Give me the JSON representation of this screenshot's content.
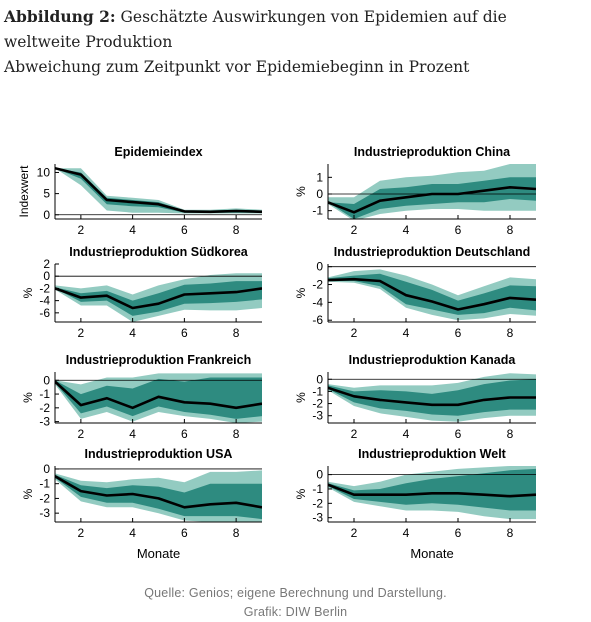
{
  "figure": {
    "label": "Abbildung 2:",
    "title_rest": "Geschätzte Auswirkungen von Epidemien auf die weltweite Produktion",
    "subtitle": "Abweichung zum Zeitpunkt vor Epidemiebeginn in Prozent"
  },
  "colors": {
    "outer_band": "#93cbc1",
    "inner_band": "#2e8b80",
    "line": "#000000",
    "axis": "#000000"
  },
  "chart_data": [
    {
      "type": "area",
      "title": "Epidemieindex",
      "ylabel": "Indexwert",
      "xlabel": "",
      "xlim": [
        1,
        9
      ],
      "ylim": [
        -1,
        12
      ],
      "yticks": [
        0,
        5,
        10
      ],
      "xticks": [
        2,
        4,
        6,
        8
      ],
      "x": [
        1,
        2,
        3,
        4,
        5,
        6,
        7,
        8,
        9
      ],
      "series": [
        {
          "role": "median",
          "values": [
            11,
            9.5,
            3.5,
            3,
            2.5,
            0.8,
            0.7,
            0.9,
            0.7
          ]
        },
        {
          "role": "inner",
          "lower": [
            11,
            8.5,
            2.5,
            2,
            1.8,
            0.5,
            0.5,
            0.5,
            0.5
          ],
          "upper": [
            11,
            10,
            4,
            3.5,
            3,
            1,
            1,
            1.2,
            1
          ]
        },
        {
          "role": "outer",
          "lower": [
            11,
            7,
            1,
            0.5,
            0.5,
            0.3,
            0.3,
            0.3,
            0.3
          ],
          "upper": [
            11,
            11,
            4.5,
            4,
            3.5,
            1.2,
            1.2,
            1.5,
            1.2
          ]
        }
      ]
    },
    {
      "type": "area",
      "title": "Industrieproduktion China",
      "ylabel": "%",
      "xlabel": "",
      "xlim": [
        1,
        9
      ],
      "ylim": [
        -1.5,
        1.8
      ],
      "yticks": [
        -1,
        0,
        1
      ],
      "xticks": [
        2,
        4,
        6,
        8
      ],
      "x": [
        1,
        2,
        3,
        4,
        5,
        6,
        7,
        8,
        9
      ],
      "series": [
        {
          "role": "median",
          "values": [
            -0.5,
            -1.1,
            -0.4,
            -0.2,
            0,
            0,
            0.2,
            0.4,
            0.3
          ]
        },
        {
          "role": "inner",
          "lower": [
            -0.5,
            -1.5,
            -0.9,
            -0.7,
            -0.6,
            -0.5,
            -0.5,
            -0.3,
            -0.4
          ],
          "upper": [
            -0.5,
            -0.6,
            0.3,
            0.4,
            0.6,
            0.6,
            0.8,
            1.0,
            1.0
          ]
        },
        {
          "role": "outer",
          "lower": [
            -0.6,
            -1.6,
            -1.2,
            -1.0,
            -0.9,
            -0.9,
            -1.0,
            -1.0,
            -1.0
          ],
          "upper": [
            -0.2,
            -0.2,
            0.8,
            1.0,
            1.1,
            1.3,
            1.4,
            1.8,
            1.8
          ]
        }
      ]
    },
    {
      "type": "area",
      "title": "Industrieproduktion Südkorea",
      "ylabel": "%",
      "xlabel": "",
      "xlim": [
        1,
        9
      ],
      "ylim": [
        -7.5,
        2
      ],
      "yticks": [
        -6,
        -4,
        -2,
        0,
        2
      ],
      "xticks": [
        2,
        4,
        6,
        8
      ],
      "x": [
        1,
        2,
        3,
        4,
        5,
        6,
        7,
        8,
        9
      ],
      "series": [
        {
          "role": "median",
          "values": [
            -2,
            -3.5,
            -3.2,
            -5.2,
            -4.5,
            -3,
            -2.8,
            -2.6,
            -2
          ]
        },
        {
          "role": "inner",
          "lower": [
            -2,
            -4.2,
            -4,
            -6.5,
            -5.8,
            -4.5,
            -4.4,
            -4.2,
            -3.8
          ],
          "upper": [
            -1.8,
            -2.8,
            -2.4,
            -4,
            -2.8,
            -1.4,
            -1.2,
            -0.8,
            -0.8
          ]
        },
        {
          "role": "outer",
          "lower": [
            -2.2,
            -4.8,
            -4.8,
            -7.5,
            -6.5,
            -5.5,
            -5.6,
            -5.6,
            -5.2
          ],
          "upper": [
            -1.5,
            -2,
            -1.5,
            -3,
            -1.5,
            -0.5,
            0.2,
            0.5,
            0.5
          ]
        }
      ]
    },
    {
      "type": "area",
      "title": "Industrieproduktion Deutschland",
      "ylabel": "%",
      "xlabel": "",
      "xlim": [
        1,
        9
      ],
      "ylim": [
        -6.2,
        0.3
      ],
      "yticks": [
        -6,
        -4,
        -2,
        0
      ],
      "xticks": [
        2,
        4,
        6,
        8
      ],
      "x": [
        1,
        2,
        3,
        4,
        5,
        6,
        7,
        8,
        9
      ],
      "series": [
        {
          "role": "median",
          "values": [
            -1.5,
            -1.4,
            -1.6,
            -3.2,
            -3.9,
            -4.8,
            -4.2,
            -3.5,
            -3.7
          ]
        },
        {
          "role": "inner",
          "lower": [
            -1.6,
            -1.6,
            -2.2,
            -4.2,
            -4.8,
            -5.4,
            -5.2,
            -4.6,
            -4.9
          ],
          "upper": [
            -1.3,
            -1.0,
            -0.8,
            -1.7,
            -2.6,
            -3.8,
            -3.0,
            -2.1,
            -2.2
          ]
        },
        {
          "role": "outer",
          "lower": [
            -1.7,
            -1.8,
            -2.5,
            -4.6,
            -5.4,
            -6.0,
            -5.8,
            -5.3,
            -5.5
          ],
          "upper": [
            -1.2,
            -0.5,
            -0.3,
            -1.0,
            -2.0,
            -3.2,
            -2.2,
            -1.2,
            -1.4
          ]
        }
      ]
    },
    {
      "type": "area",
      "title": "Industrieproduktion Frankreich",
      "ylabel": "%",
      "xlabel": "",
      "xlim": [
        1,
        9
      ],
      "ylim": [
        -3.1,
        0.6
      ],
      "yticks": [
        -3,
        -2,
        -1,
        0
      ],
      "xticks": [
        2,
        4,
        6,
        8
      ],
      "x": [
        1,
        2,
        3,
        4,
        5,
        6,
        7,
        8,
        9
      ],
      "series": [
        {
          "role": "median",
          "values": [
            -0.1,
            -1.8,
            -1.3,
            -2.0,
            -1.2,
            -1.6,
            -1.7,
            -2.0,
            -1.7
          ]
        },
        {
          "role": "inner",
          "lower": [
            -0.2,
            -2.4,
            -1.9,
            -2.6,
            -1.9,
            -2.3,
            -2.5,
            -2.8,
            -2.6
          ],
          "upper": [
            0,
            -1.0,
            -0.4,
            -0.6,
            0.1,
            -0.1,
            0.2,
            0.2,
            0.2
          ]
        },
        {
          "role": "outer",
          "lower": [
            -0.3,
            -2.8,
            -2.3,
            -3.0,
            -2.3,
            -2.6,
            -2.8,
            -3.1,
            -3.0
          ],
          "upper": [
            0,
            -0.3,
            0.2,
            0.2,
            0.5,
            0.5,
            0.5,
            0.5,
            0.5
          ]
        }
      ]
    },
    {
      "type": "area",
      "title": "Industrieproduktion Kanada",
      "ylabel": "%",
      "xlabel": "",
      "xlim": [
        1,
        9
      ],
      "ylim": [
        -3.6,
        0.6
      ],
      "yticks": [
        -3,
        -2,
        -1,
        0
      ],
      "xticks": [
        2,
        4,
        6,
        8
      ],
      "x": [
        1,
        2,
        3,
        4,
        5,
        6,
        7,
        8,
        9
      ],
      "series": [
        {
          "role": "median",
          "values": [
            -0.7,
            -1.4,
            -1.7,
            -1.9,
            -2.1,
            -2.1,
            -1.7,
            -1.5,
            -1.5
          ]
        },
        {
          "role": "inner",
          "lower": [
            -0.8,
            -1.9,
            -2.4,
            -2.6,
            -2.9,
            -3.0,
            -2.7,
            -2.5,
            -2.5
          ],
          "upper": [
            -0.5,
            -1.0,
            -0.9,
            -1.0,
            -1.2,
            -0.9,
            -0.4,
            -0.1,
            0
          ]
        },
        {
          "role": "outer",
          "lower": [
            -0.9,
            -2.2,
            -2.8,
            -3.1,
            -3.4,
            -3.5,
            -3.2,
            -3.0,
            -3.0
          ],
          "upper": [
            -0.4,
            -0.7,
            -0.5,
            -0.5,
            -0.5,
            -0.3,
            0.2,
            0.5,
            0.4
          ]
        }
      ]
    },
    {
      "type": "area",
      "title": "Industrieproduktion USA",
      "ylabel": "%",
      "xlabel": "Monate",
      "xlim": [
        1,
        9
      ],
      "ylim": [
        -3.6,
        0.2
      ],
      "yticks": [
        -3,
        -2,
        -1,
        0
      ],
      "xticks": [
        2,
        4,
        6,
        8
      ],
      "x": [
        1,
        2,
        3,
        4,
        5,
        6,
        7,
        8,
        9
      ],
      "series": [
        {
          "role": "median",
          "values": [
            -0.5,
            -1.5,
            -1.8,
            -1.7,
            -2.0,
            -2.6,
            -2.4,
            -2.3,
            -2.6
          ]
        },
        {
          "role": "inner",
          "lower": [
            -0.6,
            -1.9,
            -2.3,
            -2.3,
            -2.7,
            -3.2,
            -3.2,
            -3.2,
            -3.4
          ],
          "upper": [
            -0.4,
            -1.1,
            -1.3,
            -1.1,
            -1.2,
            -1.6,
            -1.0,
            -1.0,
            -1.0
          ]
        },
        {
          "role": "outer",
          "lower": [
            -0.7,
            -2.2,
            -2.6,
            -2.6,
            -3.0,
            -3.5,
            -3.6,
            -3.6,
            -3.6
          ],
          "upper": [
            -0.3,
            -0.8,
            -0.9,
            -0.7,
            -0.6,
            -0.9,
            -0.2,
            -0.2,
            -0.1
          ]
        }
      ]
    },
    {
      "type": "area",
      "title": "Industrieproduktion Welt",
      "ylabel": "%",
      "xlabel": "Monate",
      "xlim": [
        1,
        9
      ],
      "ylim": [
        -3.3,
        0.6
      ],
      "yticks": [
        -3,
        -2,
        -1,
        0
      ],
      "xticks": [
        2,
        4,
        6,
        8
      ],
      "x": [
        1,
        2,
        3,
        4,
        5,
        6,
        7,
        8,
        9
      ],
      "series": [
        {
          "role": "median",
          "values": [
            -0.7,
            -1.4,
            -1.4,
            -1.4,
            -1.3,
            -1.3,
            -1.4,
            -1.5,
            -1.4
          ]
        },
        {
          "role": "inner",
          "lower": [
            -0.8,
            -1.7,
            -1.9,
            -2.1,
            -2.0,
            -2.1,
            -2.3,
            -2.5,
            -2.5
          ],
          "upper": [
            -0.6,
            -1.1,
            -1.0,
            -0.6,
            -0.3,
            -0.1,
            0.1,
            0.3,
            0.4
          ]
        },
        {
          "role": "outer",
          "lower": [
            -0.9,
            -1.9,
            -2.2,
            -2.5,
            -2.5,
            -2.6,
            -2.9,
            -3.1,
            -3.1
          ],
          "upper": [
            -0.5,
            -0.8,
            -0.5,
            0.0,
            0.2,
            0.4,
            0.5,
            0.6,
            0.6
          ]
        }
      ]
    }
  ],
  "source": {
    "line1": "Quelle: Genios; eigene Berechnung und Darstellung.",
    "line2": "Grafik: DIW Berlin"
  }
}
